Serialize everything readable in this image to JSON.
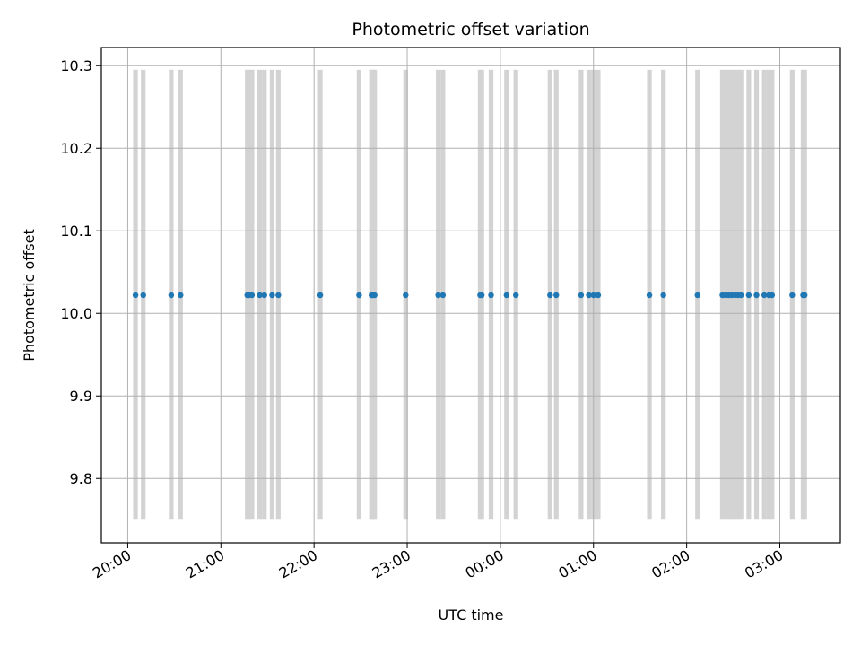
{
  "chart_data": {
    "type": "scatter",
    "title": "Photometric offset variation",
    "xlabel": "UTC time",
    "ylabel": "Photometric offset",
    "x_axis": {
      "kind": "time",
      "range": [
        "19:43",
        "03:39"
      ],
      "ticks": [
        "20:00",
        "21:00",
        "22:00",
        "23:00",
        "00:00",
        "01:00",
        "02:00",
        "03:00"
      ]
    },
    "y_axis": {
      "range": [
        9.722,
        10.322
      ],
      "ticks": [
        9.8,
        9.9,
        10.0,
        10.1,
        10.2,
        10.3
      ],
      "tick_labels": [
        "9.8",
        "9.9",
        "10.0",
        "10.1",
        "10.2",
        "10.3"
      ]
    },
    "grid": true,
    "exposure_band_y_range": [
      9.75,
      10.295
    ],
    "exposure_band_color": "#d3d3d3",
    "point_color": "#1f77b4",
    "points": [
      {
        "x": "20:05",
        "y": 10.022
      },
      {
        "x": "20:10",
        "y": 10.022
      },
      {
        "x": "20:28",
        "y": 10.022
      },
      {
        "x": "20:34",
        "y": 10.022
      },
      {
        "x": "21:17",
        "y": 10.022
      },
      {
        "x": "21:18",
        "y": 10.022
      },
      {
        "x": "21:20",
        "y": 10.022
      },
      {
        "x": "21:25",
        "y": 10.022
      },
      {
        "x": "21:28",
        "y": 10.022
      },
      {
        "x": "21:33",
        "y": 10.022
      },
      {
        "x": "21:37",
        "y": 10.022
      },
      {
        "x": "22:04",
        "y": 10.022
      },
      {
        "x": "22:29",
        "y": 10.022
      },
      {
        "x": "22:37",
        "y": 10.022
      },
      {
        "x": "22:38",
        "y": 10.022
      },
      {
        "x": "22:39",
        "y": 10.022
      },
      {
        "x": "22:59",
        "y": 10.022
      },
      {
        "x": "23:20",
        "y": 10.022
      },
      {
        "x": "23:23",
        "y": 10.022
      },
      {
        "x": "23:47",
        "y": 10.022
      },
      {
        "x": "23:48",
        "y": 10.022
      },
      {
        "x": "23:54",
        "y": 10.022
      },
      {
        "x": "00:04",
        "y": 10.022
      },
      {
        "x": "00:10",
        "y": 10.022
      },
      {
        "x": "00:32",
        "y": 10.022
      },
      {
        "x": "00:36",
        "y": 10.022
      },
      {
        "x": "00:52",
        "y": 10.022
      },
      {
        "x": "00:57",
        "y": 10.022
      },
      {
        "x": "01:00",
        "y": 10.022
      },
      {
        "x": "01:03",
        "y": 10.022
      },
      {
        "x": "01:36",
        "y": 10.022
      },
      {
        "x": "01:45",
        "y": 10.022
      },
      {
        "x": "02:07",
        "y": 10.022
      },
      {
        "x": "02:23",
        "y": 10.022
      },
      {
        "x": "02:25",
        "y": 10.022
      },
      {
        "x": "02:27",
        "y": 10.022
      },
      {
        "x": "02:29",
        "y": 10.022
      },
      {
        "x": "02:31",
        "y": 10.022
      },
      {
        "x": "02:33",
        "y": 10.022
      },
      {
        "x": "02:35",
        "y": 10.022
      },
      {
        "x": "02:40",
        "y": 10.022
      },
      {
        "x": "02:45",
        "y": 10.022
      },
      {
        "x": "02:50",
        "y": 10.022
      },
      {
        "x": "02:53",
        "y": 10.022
      },
      {
        "x": "02:55",
        "y": 10.022
      },
      {
        "x": "03:08",
        "y": 10.022
      },
      {
        "x": "03:15",
        "y": 10.022
      },
      {
        "x": "03:16",
        "y": 10.022
      }
    ]
  }
}
